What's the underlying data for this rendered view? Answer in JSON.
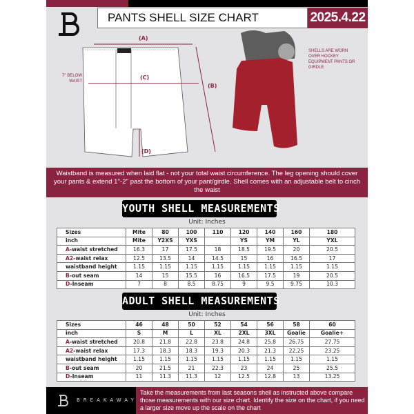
{
  "header": {
    "title": "PANTS SHELL SIZE CHART",
    "date": "2025.4.22"
  },
  "diagram": {
    "label_a": "(A)",
    "label_b": "(B)",
    "label_c": "(C)",
    "label_d": "(D)",
    "below_waist": "7'' BELOW WAIST",
    "worn_note": "SHELLS ARE WORN OVER HOCKEY EQUIPMENT PANTS OR GIRDLE"
  },
  "banner": {
    "text": "Waistband is measured when laid flat - not your total waist circumference. The leg opening should cover your pants & extend 1''-2'' past the bottom of your pant/girdle. Shell comes with an adjustable belt to cinch the waist"
  },
  "youth": {
    "title": "YOUTH SHELL MEASUREMENTS",
    "unit": "Unit: Inches",
    "rows": [
      {
        "prefix": "",
        "label": "Sizes",
        "values": [
          "Mite",
          "80",
          "100",
          "110",
          "120",
          "140",
          "160",
          "180"
        ]
      },
      {
        "prefix": "",
        "label": "inch",
        "values": [
          "Mite",
          "Y2XS",
          "YXS",
          "",
          "YS",
          "YM",
          "YL",
          "YXL"
        ]
      },
      {
        "prefix": "A",
        "label": "-waist stretched",
        "values": [
          "16.3",
          "17",
          "17.5",
          "18",
          "18.5",
          "19.5",
          "20",
          "20.5"
        ]
      },
      {
        "prefix": "A2",
        "label": "-waist relax",
        "values": [
          "12.5",
          "13.5",
          "14",
          "14.5",
          "15",
          "16",
          "16.5",
          "17"
        ]
      },
      {
        "prefix": "",
        "label": "waistband height",
        "values": [
          "1.15",
          "1.15",
          "1.15",
          "1.15",
          "1.15",
          "1.15",
          "1.15",
          "1.15"
        ]
      },
      {
        "prefix": "B",
        "label": "-out seam",
        "values": [
          "14",
          "15",
          "15.5",
          "16",
          "16.5",
          "17.5",
          "19",
          "20.5"
        ]
      },
      {
        "prefix": "D",
        "label": "-Inseam",
        "values": [
          "7",
          "8",
          "8.5",
          "8.75",
          "9",
          "9.5",
          "9.75",
          "10.3"
        ]
      }
    ]
  },
  "adult": {
    "title": "ADULT SHELL MEASUREMENTS",
    "unit": "Unit: Inches",
    "rows": [
      {
        "prefix": "",
        "label": "Sizes",
        "values": [
          "46",
          "48",
          "50",
          "52",
          "54",
          "56",
          "58",
          "60"
        ]
      },
      {
        "prefix": "",
        "label": "inch",
        "values": [
          "S",
          "M",
          "L",
          "XL",
          "2XL",
          "3XL",
          "Goalie",
          "Goalie+"
        ]
      },
      {
        "prefix": "A",
        "label": "-waist stretched",
        "values": [
          "20.8",
          "21.8",
          "22.8",
          "23.8",
          "24.8",
          "25.8",
          "26.75",
          "27.75"
        ]
      },
      {
        "prefix": "A2",
        "label": "-waist relax",
        "values": [
          "17.3",
          "18.3",
          "18.3",
          "19.3",
          "20.3",
          "21.3",
          "22.25",
          "23.25"
        ]
      },
      {
        "prefix": "",
        "label": "waistband height",
        "values": [
          "1.15",
          "1.15",
          "1.15",
          "1.15",
          "1.15",
          "1.15",
          "1.15",
          "1.15"
        ]
      },
      {
        "prefix": "B",
        "label": "-out seam",
        "values": [
          "20",
          "21.5",
          "21",
          "22.3",
          "23",
          "24",
          "25",
          "25.5"
        ]
      },
      {
        "prefix": "D",
        "label": "-Inseam",
        "values": [
          "11",
          "11.3",
          "11.3",
          "12",
          "12.5",
          "12.8",
          "13",
          "13.25"
        ]
      }
    ]
  },
  "footer": {
    "brand": "BREAKAWAY",
    "text": "Take the measurements from last seasons shell as instructed above compare those measurements  with our size chart. Identify the size on the chart, if you need a larger size move up the scale on the chart"
  },
  "colors": {
    "accent": "#8a2340",
    "dark": "#000000",
    "background": "#e3e3e6"
  }
}
